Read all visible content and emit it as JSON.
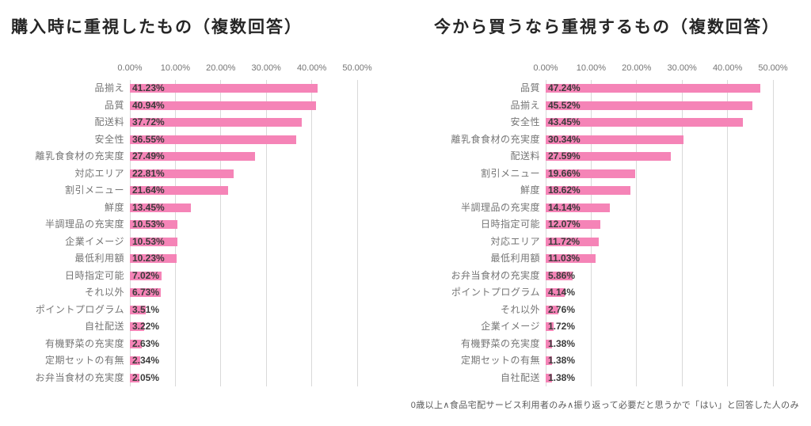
{
  "page": {
    "background_color": "#FFFFFF",
    "footer_note": "0歳以上∧食品宅配サービス利用者のみ∧振り返って必要だと思うかで「はい」と回答した人のみ"
  },
  "colors": {
    "bar": "#F584B7",
    "gridline": "#D9D9D9",
    "axis_text": "#757575",
    "category_text": "#757575",
    "value_text": "#3B3B3B",
    "title_text": "#262626",
    "note_text": "#595959"
  },
  "chart_data": [
    {
      "type": "bar",
      "orientation": "horizontal",
      "title": "購入時に重視したもの（複数回答）",
      "xlabel": "",
      "ylabel": "",
      "xlim": [
        0,
        50
      ],
      "grid": true,
      "legend": "none",
      "x_ticks": [
        "0.00%",
        "10.00%",
        "20.00%",
        "30.00%",
        "40.00%",
        "50.00%"
      ],
      "categories": [
        "品揃え",
        "品質",
        "配送料",
        "安全性",
        "離乳食食材の充実度",
        "対応エリア",
        "割引メニュー",
        "鮮度",
        "半調理品の充実度",
        "企業イメージ",
        "最低利用額",
        "日時指定可能",
        "それ以外",
        "ポイントプログラム",
        "自社配送",
        "有機野菜の充実度",
        "定期セットの有無",
        "お弁当食材の充実度"
      ],
      "values": [
        41.23,
        40.94,
        37.72,
        36.55,
        27.49,
        22.81,
        21.64,
        13.45,
        10.53,
        10.53,
        10.23,
        7.02,
        6.73,
        3.51,
        3.22,
        2.63,
        2.34,
        2.05
      ],
      "labels": [
        "41.23%",
        "40.94%",
        "37.72%",
        "36.55%",
        "27.49%",
        "22.81%",
        "21.64%",
        "13.45%",
        "10.53%",
        "10.53%",
        "10.23%",
        "7.02%",
        "6.73%",
        "3.51%",
        "3.22%",
        "2.63%",
        "2.34%",
        "2.05%"
      ]
    },
    {
      "type": "bar",
      "orientation": "horizontal",
      "title": "今から買うなら重視するもの（複数回答）",
      "xlabel": "",
      "ylabel": "",
      "xlim": [
        0,
        50
      ],
      "grid": true,
      "legend": "none",
      "x_ticks": [
        "0.00%",
        "10.00%",
        "20.00%",
        "30.00%",
        "40.00%",
        "50.00%"
      ],
      "categories": [
        "品質",
        "品揃え",
        "安全性",
        "離乳食食材の充実度",
        "配送料",
        "割引メニュー",
        "鮮度",
        "半調理品の充実度",
        "日時指定可能",
        "対応エリア",
        "最低利用額",
        "お弁当食材の充実度",
        "ポイントプログラム",
        "それ以外",
        "企業イメージ",
        "有機野菜の充実度",
        "定期セットの有無",
        "自社配送"
      ],
      "values": [
        47.24,
        45.52,
        43.45,
        30.34,
        27.59,
        19.66,
        18.62,
        14.14,
        12.07,
        11.72,
        11.03,
        5.86,
        4.14,
        2.76,
        1.72,
        1.38,
        1.38,
        1.38
      ],
      "labels": [
        "47.24%",
        "45.52%",
        "43.45%",
        "30.34%",
        "27.59%",
        "19.66%",
        "18.62%",
        "14.14%",
        "12.07%",
        "11.72%",
        "11.03%",
        "5.86%",
        "4.14%",
        "2.76%",
        "1.72%",
        "1.38%",
        "1.38%",
        "1.38%"
      ]
    }
  ]
}
